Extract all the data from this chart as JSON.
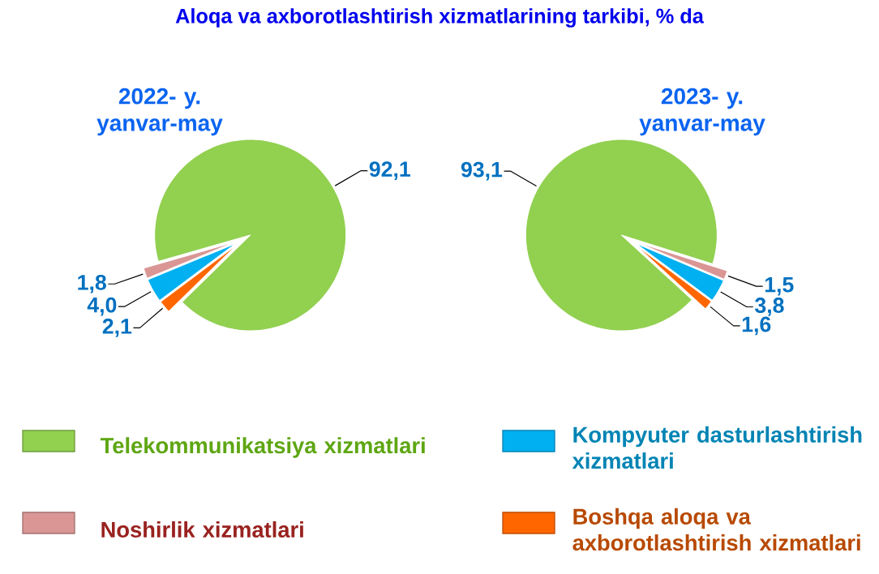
{
  "chart_data": {
    "type": "pie",
    "title": "Aloqa va axborotlashtirish xizmatlarining tarkibi, % da",
    "categories": [
      "Telekommunikatsiya xizmatlari",
      "Noshirlik xizmatlari",
      "Kompyuter dasturlashtirish xizmatlari",
      "Boshqa aloqa va axborotlashtirish xizmatlari"
    ],
    "colors": [
      "#92d050",
      "#d99694",
      "#00b0f0",
      "#ff6600"
    ],
    "series": [
      {
        "name": "2022- y. yanvar-may",
        "values": [
          92.1,
          1.8,
          4.0,
          2.1
        ],
        "value_labels": [
          "92,1",
          "1,8",
          "4,0",
          "2,1"
        ]
      },
      {
        "name": "2023- y. yanvar-may",
        "values": [
          93.1,
          1.5,
          3.8,
          1.6
        ],
        "value_labels": [
          "93,1",
          "1,5",
          "3,8",
          "1,6"
        ]
      }
    ],
    "legend": "bottom"
  }
}
